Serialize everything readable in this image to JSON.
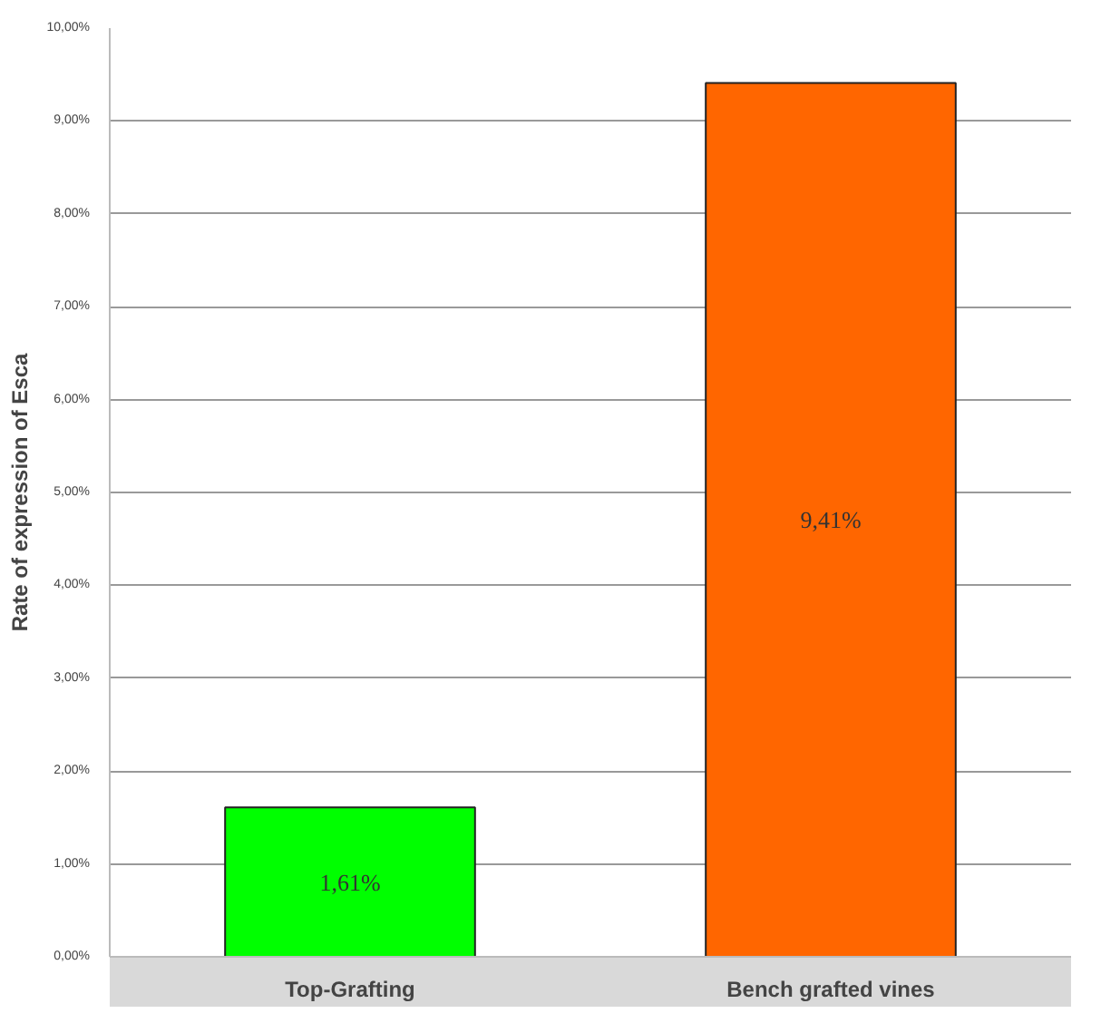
{
  "chart_data": {
    "type": "bar",
    "ylabel": "Rate of expression of Esca",
    "categories": [
      "Top-Grafting",
      "Bench grafted vines"
    ],
    "values": [
      1.61,
      9.41
    ],
    "colors": [
      "#00ff00",
      "#ff6600"
    ],
    "value_labels": [
      "1,61%",
      "9,41%"
    ],
    "ylim": [
      0,
      10
    ],
    "yticks": [
      {
        "value": 0,
        "label": "0,00%"
      },
      {
        "value": 1,
        "label": "1,00%"
      },
      {
        "value": 2,
        "label": "2,00%"
      },
      {
        "value": 3,
        "label": "3,00%"
      },
      {
        "value": 4,
        "label": "4,00%"
      },
      {
        "value": 5,
        "label": "5,00%"
      },
      {
        "value": 6,
        "label": "6,00%"
      },
      {
        "value": 7,
        "label": "7,00%"
      },
      {
        "value": 8,
        "label": "8,00%"
      },
      {
        "value": 9,
        "label": "9,00%"
      },
      {
        "value": 10,
        "label": "10,00%"
      }
    ],
    "grid": "y"
  }
}
